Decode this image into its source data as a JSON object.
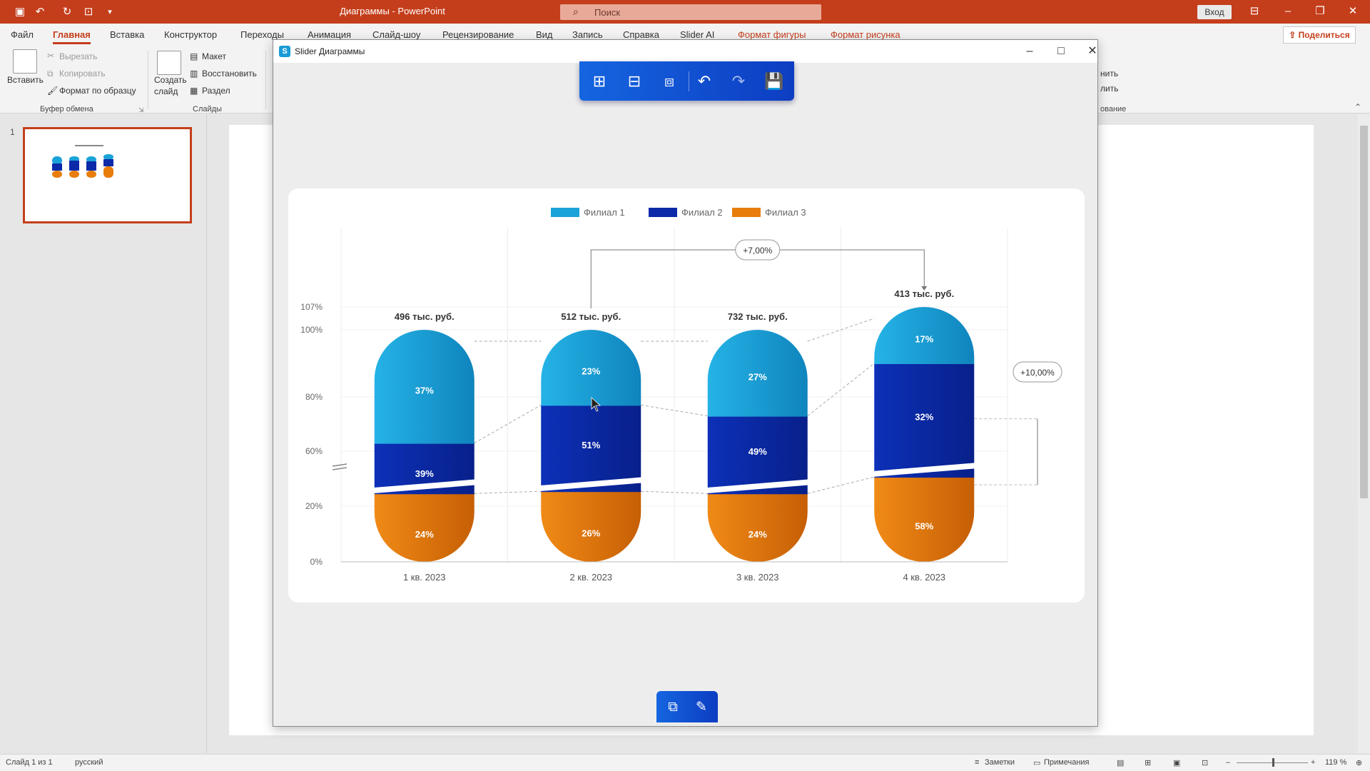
{
  "titlebar": {
    "doc_title": "Диаграммы - PowerPoint",
    "search_placeholder": "Поиск",
    "login": "Вход",
    "quick_access_icons": [
      "save-icon",
      "undo-icon",
      "redo-icon",
      "present-icon",
      "customize-icon"
    ]
  },
  "ribbon_tabs": [
    "Файл",
    "Главная",
    "Вставка",
    "Конструктор",
    "Переходы",
    "Анимация",
    "Слайд-шоу",
    "Рецензирование",
    "Вид",
    "Запись",
    "Справка",
    "Slider AI",
    "Формат фигуры",
    "Формат рисунка"
  ],
  "active_tab": "Главная",
  "share": "Поделиться",
  "ribbon": {
    "paste": "Вставить",
    "cut": "Вырезать",
    "copy": "Копировать",
    "format_painter": "Формат по образцу",
    "clipboard_group": "Буфер обмена",
    "new_slide_line1": "Создать",
    "new_slide_line2": "слайд",
    "layout": "Макет",
    "reset": "Восстановить",
    "section": "Раздел",
    "slides_group": "Слайды",
    "right_partial_1": "нить",
    "right_partial_2": "лить",
    "right_partial_group": "ование"
  },
  "thumbnails": {
    "slide_number": "1"
  },
  "dialog": {
    "title": "Slider Диаграммы",
    "toolbar_icons": [
      "layout-add-icon",
      "layout-remove-icon",
      "layout-settings-icon",
      "undo-icon",
      "redo-icon",
      "save-icon"
    ],
    "bottom_icons": [
      "edit-data-icon",
      "brush-icon"
    ]
  },
  "chart_data": {
    "type": "bar",
    "stacked": true,
    "legend": [
      "Филиал 1",
      "Филиал 2",
      "Филиал 3"
    ],
    "legend_position": "top",
    "categories": [
      "1 кв. 2023",
      "2 кв. 2023",
      "3 кв. 2023",
      "4 кв. 2023"
    ],
    "totals": [
      "496 тыс. руб.",
      "512 тыс. руб.",
      "732 тыс. руб.",
      "413 тыс. руб."
    ],
    "series": [
      {
        "name": "Филиал 3",
        "values": [
          24,
          26,
          24,
          58
        ],
        "labels": [
          "24%",
          "26%",
          "24%",
          "58%"
        ]
      },
      {
        "name": "Филиал 2",
        "values": [
          39,
          51,
          49,
          32
        ],
        "labels": [
          "39%",
          "51%",
          "49%",
          "32%"
        ]
      },
      {
        "name": "Филиал 1",
        "values": [
          37,
          23,
          27,
          17
        ],
        "labels": [
          "37%",
          "23%",
          "27%",
          "17%"
        ]
      }
    ],
    "y_ticks": [
      "0%",
      "20%",
      "60%",
      "80%",
      "100%",
      "107%"
    ],
    "axis_break": true,
    "annotations": [
      {
        "label": "+7,00%",
        "from": "2 кв. 2023",
        "to": "4 кв. 2023"
      },
      {
        "label": "+10,00%",
        "target": "4 кв. 2023"
      }
    ],
    "colors": {
      "Филиал 1": "#1aa3d8",
      "Филиал 2": "#0a2aa8",
      "Филиал 3": "#e87d0c"
    },
    "grid": true
  },
  "statusbar": {
    "slide": "Слайд 1 из 1",
    "language": "русский",
    "notes": "Заметки",
    "comments": "Примечания",
    "zoom": "119 %"
  }
}
